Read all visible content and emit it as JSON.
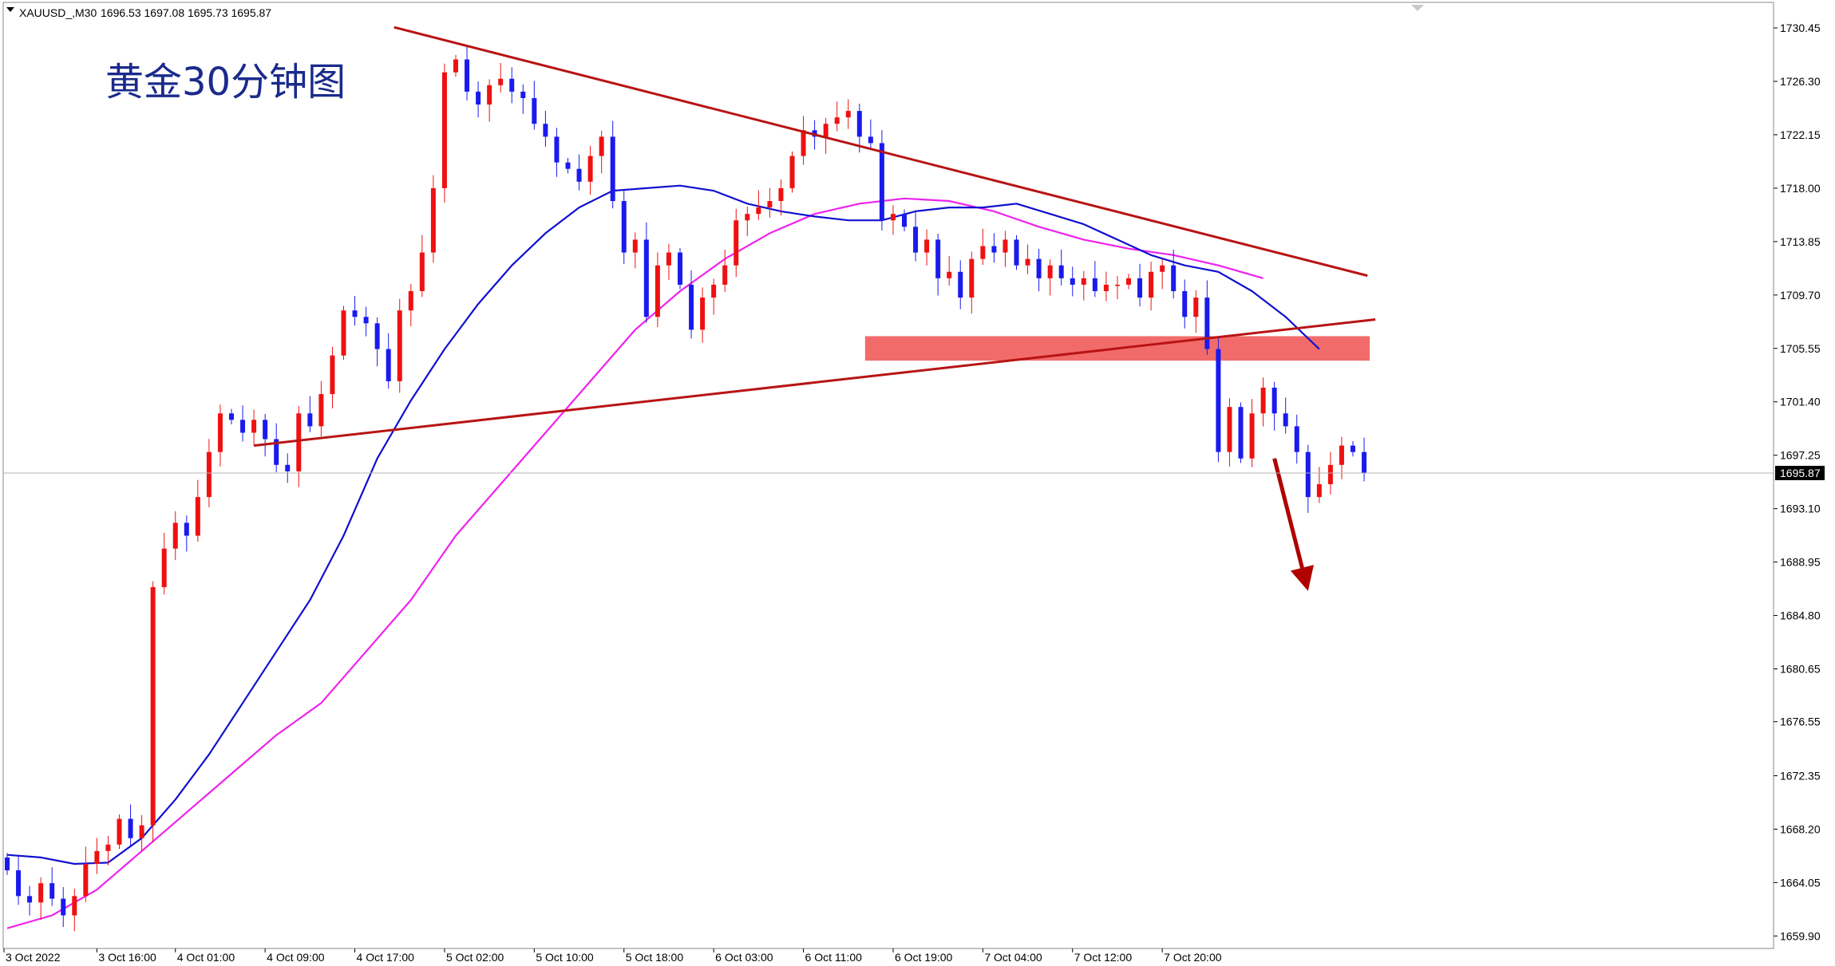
{
  "header": {
    "symbol": "XAUUSD_,M30",
    "ohlc": "1696.53 1697.08 1695.73 1695.87"
  },
  "colors": {
    "bull": "#ee1111",
    "bear": "#1a1aee",
    "ma_fast": "#1010d0",
    "ma_slow": "#ee22ee",
    "trendline": "#b81414",
    "zone": "#f26b6b",
    "arrow": "#b00000",
    "current_price": "#000000"
  },
  "chart_data": {
    "type": "candlestick",
    "title": "黄金30分钟图",
    "current_price": "1695.87",
    "y_range": [
      1658.0,
      1732.0
    ],
    "x_range": [
      0,
      134
    ],
    "y_ticks": [
      "1730.45",
      "1726.30",
      "1722.15",
      "1718.00",
      "1713.85",
      "1709.70",
      "1705.55",
      "1701.40",
      "1697.25",
      "1693.10",
      "1688.95",
      "1684.80",
      "1680.65",
      "1676.55",
      "1672.35",
      "1668.20",
      "1664.05",
      "1659.90"
    ],
    "x_ticks": [
      {
        "label": "3 Oct 2022",
        "x": 0
      },
      {
        "label": "3 Oct 16:00",
        "x": 8
      },
      {
        "label": "4 Oct 01:00",
        "x": 15
      },
      {
        "label": "4 Oct 09:00",
        "x": 23
      },
      {
        "label": "4 Oct 17:00",
        "x": 31
      },
      {
        "label": "5 Oct 02:00",
        "x": 39
      },
      {
        "label": "5 Oct 10:00",
        "x": 47
      },
      {
        "label": "5 Oct 18:00",
        "x": 55
      },
      {
        "label": "6 Oct 03:00",
        "x": 63
      },
      {
        "label": "6 Oct 11:00",
        "x": 71
      },
      {
        "label": "6 Oct 19:00",
        "x": 79
      },
      {
        "label": "7 Oct 04:00",
        "x": 87
      },
      {
        "label": "7 Oct 12:00",
        "x": 95
      },
      {
        "label": "7 Oct 20:00",
        "x": 103
      }
    ],
    "closes": [
      1665.0,
      1663.0,
      1662.5,
      1664.0,
      1662.8,
      1661.5,
      1663.0,
      1665.5,
      1666.5,
      1667.0,
      1669.0,
      1667.5,
      1668.5,
      1687.0,
      1690.0,
      1692.0,
      1691.0,
      1694.0,
      1697.5,
      1700.5,
      1700.0,
      1699.0,
      1700.0,
      1698.5,
      1696.5,
      1696.0,
      1700.5,
      1699.5,
      1702.0,
      1705.0,
      1708.5,
      1708.0,
      1707.5,
      1705.5,
      1703.0,
      1708.5,
      1710.0,
      1713.0,
      1718.0,
      1727.0,
      1728.0,
      1725.5,
      1724.5,
      1726.0,
      1726.5,
      1725.5,
      1725.0,
      1723.0,
      1722.0,
      1720.0,
      1719.5,
      1718.5,
      1720.5,
      1722.0,
      1717.0,
      1713.0,
      1714.0,
      1708.0,
      1712.0,
      1713.0,
      1710.5,
      1707.0,
      1709.5,
      1710.5,
      1712.0,
      1715.5,
      1716.0,
      1716.5,
      1717.0,
      1718.0,
      1720.5,
      1722.5,
      1722.0,
      1723.0,
      1723.5,
      1724.0,
      1722.0,
      1721.5,
      1715.5,
      1716.0,
      1715.0,
      1713.0,
      1714.0,
      1711.0,
      1711.5,
      1709.5,
      1712.5,
      1713.5,
      1713.0,
      1714.0,
      1712.0,
      1712.5,
      1711.0,
      1712.0,
      1711.0,
      1710.5,
      1711.0,
      1710.0,
      1710.5,
      1710.5,
      1711.0,
      1709.5,
      1711.5,
      1712.0,
      1710.0,
      1708.0,
      1709.5,
      1705.5,
      1697.5,
      1701.0,
      1697.0,
      1700.5,
      1702.5,
      1700.5,
      1699.5,
      1697.5,
      1694.0,
      1695.0,
      1696.5,
      1698.0,
      1697.5,
      1695.9
    ],
    "ma_fast": [
      [
        0,
        1666.2
      ],
      [
        3,
        1666.0
      ],
      [
        6,
        1665.5
      ],
      [
        9,
        1665.6
      ],
      [
        12,
        1667.5
      ],
      [
        15,
        1670.5
      ],
      [
        18,
        1674.0
      ],
      [
        21,
        1678.0
      ],
      [
        24,
        1682.0
      ],
      [
        27,
        1686.0
      ],
      [
        30,
        1691.0
      ],
      [
        33,
        1697.0
      ],
      [
        36,
        1701.5
      ],
      [
        39,
        1705.5
      ],
      [
        42,
        1709.0
      ],
      [
        45,
        1712.0
      ],
      [
        48,
        1714.5
      ],
      [
        51,
        1716.5
      ],
      [
        54,
        1717.8
      ],
      [
        57,
        1718.0
      ],
      [
        60,
        1718.2
      ],
      [
        63,
        1717.8
      ],
      [
        66,
        1716.8
      ],
      [
        69,
        1716.2
      ],
      [
        72,
        1715.8
      ],
      [
        75,
        1715.5
      ],
      [
        78,
        1715.5
      ],
      [
        81,
        1716.2
      ],
      [
        84,
        1716.5
      ],
      [
        87,
        1716.5
      ],
      [
        90,
        1716.8
      ],
      [
        93,
        1716.0
      ],
      [
        96,
        1715.2
      ],
      [
        99,
        1714.0
      ],
      [
        102,
        1712.8
      ],
      [
        105,
        1712.0
      ],
      [
        108,
        1711.5
      ],
      [
        111,
        1710.0
      ],
      [
        114,
        1708.0
      ],
      [
        117,
        1705.5
      ]
    ],
    "ma_slow": [
      [
        0,
        1660.5
      ],
      [
        4,
        1661.5
      ],
      [
        8,
        1663.5
      ],
      [
        12,
        1666.5
      ],
      [
        16,
        1669.5
      ],
      [
        20,
        1672.5
      ],
      [
        24,
        1675.5
      ],
      [
        28,
        1678.0
      ],
      [
        32,
        1682.0
      ],
      [
        36,
        1686.0
      ],
      [
        40,
        1691.0
      ],
      [
        44,
        1695.0
      ],
      [
        48,
        1699.0
      ],
      [
        52,
        1703.0
      ],
      [
        56,
        1707.0
      ],
      [
        60,
        1710.0
      ],
      [
        64,
        1712.5
      ],
      [
        68,
        1714.5
      ],
      [
        72,
        1716.0
      ],
      [
        76,
        1716.8
      ],
      [
        80,
        1717.2
      ],
      [
        84,
        1717.0
      ],
      [
        88,
        1716.2
      ],
      [
        92,
        1715.0
      ],
      [
        96,
        1714.0
      ],
      [
        100,
        1713.3
      ],
      [
        104,
        1712.8
      ],
      [
        108,
        1712.0
      ],
      [
        112,
        1711.0
      ]
    ],
    "lines": [
      {
        "name": "upper-trendline",
        "from": [
          34.5,
          1730.5
        ],
        "to": [
          121.3,
          1711.2
        ]
      },
      {
        "name": "lower-trendline",
        "from": [
          22,
          1698.0
        ],
        "to": [
          122,
          1707.8
        ]
      }
    ],
    "zone": {
      "x0": 76.5,
      "x1": 121.5,
      "y0": 1704.6,
      "y1": 1706.5
    },
    "arrow": {
      "from": [
        113,
        1697.0
      ],
      "to": [
        116,
        1686.7
      ]
    }
  }
}
